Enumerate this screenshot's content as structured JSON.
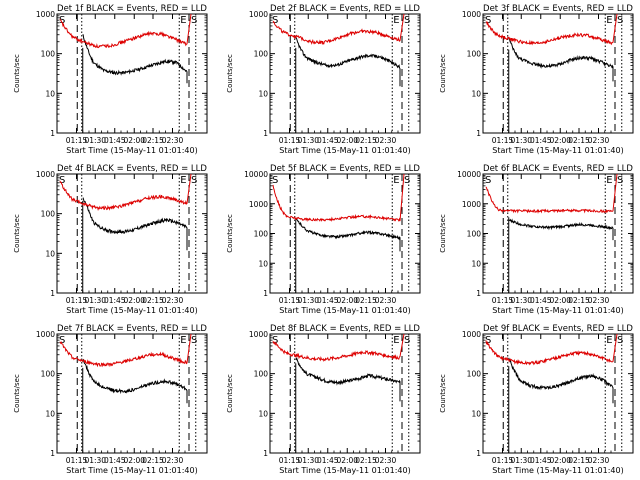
{
  "colors": {
    "events": "#000000",
    "lld": "#dd0000",
    "axes": "#000000",
    "background": "#ffffff"
  },
  "chart_data": [
    {
      "id": "1f",
      "type": "line",
      "title": "Det 1f BLACK = Events, RED = LLD",
      "xlabel": "Start Time (15-May-11 01:01:40)",
      "ylabel": "Counts/sec",
      "yscale": "log",
      "ylim": [
        1,
        1000
      ],
      "y_ticks": [
        "1",
        "10",
        "100",
        "1000"
      ],
      "x_ticks": [
        "01:15",
        "01:30",
        "01:45",
        "02:00",
        "02:15",
        "02:30"
      ],
      "markers": [
        {
          "label": "S",
          "style": "solid"
        },
        {
          "label": "E",
          "style": "dotted"
        },
        {
          "label": "S",
          "style": "dashed"
        }
      ],
      "series": [
        {
          "name": "BLACK = Events",
          "start": 300,
          "s": [
            100,
            60,
            38,
            33,
            33,
            38,
            45,
            55,
            65,
            60,
            35
          ],
          "drop": 18
        },
        {
          "name": "RED = LLD",
          "start": 700,
          "s": [
            360,
            260,
            190,
            150,
            160,
            200,
            260,
            320,
            320,
            240,
            170
          ]
        }
      ]
    },
    {
      "id": "2f",
      "type": "line",
      "title": "Det 2f BLACK = Events, RED = LLD",
      "xlabel": "Start Time (15-May-11 01:01:40)",
      "ylabel": "Counts/sec",
      "yscale": "log",
      "ylim": [
        1,
        1000
      ],
      "y_ticks": [
        "1",
        "10",
        "100",
        "1000"
      ],
      "x_ticks": [
        "01:15",
        "01:30",
        "01:45",
        "02:00",
        "02:15",
        "02:30"
      ],
      "markers": [
        {
          "label": "S",
          "style": "solid"
        },
        {
          "label": "E",
          "style": "dotted"
        },
        {
          "label": "S",
          "style": "dashed"
        }
      ],
      "series": [
        {
          "name": "BLACK = Events",
          "start": 250,
          "s": [
            100,
            80,
            60,
            50,
            52,
            65,
            80,
            90,
            85,
            65,
            45
          ],
          "drop": 15
        },
        {
          "name": "RED = LLD",
          "start": 650,
          "s": [
            380,
            320,
            260,
            200,
            190,
            240,
            320,
            370,
            350,
            280,
            220
          ]
        }
      ]
    },
    {
      "id": "3f",
      "type": "line",
      "title": "Det 3f BLACK = Events, RED = LLD",
      "xlabel": "Start Time (15-May-11 01:01:40)",
      "ylabel": "Counts/sec",
      "yscale": "log",
      "ylim": [
        1,
        1000
      ],
      "y_ticks": [
        "1",
        "10",
        "100",
        "1000"
      ],
      "x_ticks": [
        "01:15",
        "01:30",
        "01:45",
        "02:00",
        "02:15",
        "02:30"
      ],
      "markers": [
        {
          "label": "S",
          "style": "solid"
        },
        {
          "label": "E",
          "style": "dotted"
        },
        {
          "label": "S",
          "style": "dashed"
        }
      ],
      "series": [
        {
          "name": "BLACK = Events",
          "start": 250,
          "s": [
            90,
            75,
            60,
            50,
            48,
            55,
            70,
            80,
            75,
            60,
            45
          ],
          "drop": 20
        },
        {
          "name": "RED = LLD",
          "start": 650,
          "s": [
            320,
            280,
            230,
            190,
            180,
            210,
            260,
            300,
            290,
            230,
            180
          ]
        }
      ]
    },
    {
      "id": "4f",
      "type": "line",
      "title": "Det 4f BLACK = Events, RED = LLD",
      "xlabel": "Start Time (15-May-11 01:01:40)",
      "ylabel": "Counts/sec",
      "yscale": "log",
      "ylim": [
        1,
        1000
      ],
      "y_ticks": [
        "1",
        "10",
        "100",
        "1000"
      ],
      "x_ticks": [
        "01:15",
        "01:30",
        "01:45",
        "02:00",
        "02:15",
        "02:30"
      ],
      "markers": [
        {
          "label": "S",
          "style": "solid"
        },
        {
          "label": "E",
          "style": "dotted"
        },
        {
          "label": "S",
          "style": "dashed"
        }
      ],
      "series": [
        {
          "name": "BLACK = Events",
          "start": 250,
          "s": [
            150,
            60,
            40,
            35,
            35,
            40,
            50,
            60,
            70,
            60,
            45
          ],
          "drop": 12
        },
        {
          "name": "RED = LLD",
          "start": 650,
          "s": [
            300,
            220,
            170,
            140,
            140,
            160,
            200,
            250,
            270,
            230,
            180
          ]
        }
      ]
    },
    {
      "id": "5f",
      "type": "line",
      "title": "Det 5f BLACK = Events, RED = LLD",
      "xlabel": "Start Time (15-May-11 01:01:40)",
      "ylabel": "Counts/sec",
      "yscale": "log",
      "ylim": [
        1,
        10000
      ],
      "y_ticks": [
        "1",
        "10",
        "100",
        "1000",
        "10000"
      ],
      "x_ticks": [
        "01:15",
        "01:30",
        "01:45",
        "02:00",
        "02:15",
        "02:30"
      ],
      "markers": [
        {
          "label": "S",
          "style": "solid"
        },
        {
          "label": "E",
          "style": "dotted"
        },
        {
          "label": "S",
          "style": "dashed"
        }
      ],
      "series": [
        {
          "name": "BLACK = Events",
          "start": 300,
          "s": [
            200,
            130,
            95,
            80,
            78,
            85,
            100,
            110,
            100,
            85,
            70
          ],
          "drop": 25
        },
        {
          "name": "RED = LLD",
          "start": 4000,
          "s": [
            450,
            380,
            320,
            290,
            290,
            310,
            350,
            380,
            360,
            320,
            280
          ]
        }
      ]
    },
    {
      "id": "6f",
      "type": "line",
      "title": "Det 6f BLACK = Events, RED = LLD",
      "xlabel": "Start Time (15-May-11 01:01:40)",
      "ylabel": "Counts/sec",
      "yscale": "log",
      "ylim": [
        1,
        10000
      ],
      "y_ticks": [
        "1",
        "10",
        "100",
        "1000",
        "10000"
      ],
      "x_ticks": [
        "01:15",
        "01:30",
        "01:45",
        "02:00",
        "02:15",
        "02:30"
      ],
      "markers": [
        {
          "label": "S",
          "style": "solid"
        },
        {
          "label": "E",
          "style": "dotted"
        },
        {
          "label": "S",
          "style": "dashed"
        }
      ],
      "series": [
        {
          "name": "BLACK = Events",
          "start": 280,
          "s": [
            250,
            210,
            180,
            165,
            160,
            170,
            190,
            200,
            190,
            170,
            150
          ],
          "drop": 60
        },
        {
          "name": "RED = LLD",
          "start": 4000,
          "s": [
            650,
            600,
            580,
            570,
            570,
            580,
            590,
            600,
            590,
            570,
            550
          ]
        }
      ]
    },
    {
      "id": "7f",
      "type": "line",
      "title": "Det 7f BLACK = Events, RED = LLD",
      "xlabel": "Start Time (15-May-11 01:01:40)",
      "ylabel": "Counts/sec",
      "yscale": "log",
      "ylim": [
        1,
        1000
      ],
      "y_ticks": [
        "1",
        "10",
        "100",
        "1000"
      ],
      "x_ticks": [
        "01:15",
        "01:30",
        "01:45",
        "02:00",
        "02:15",
        "02:30"
      ],
      "markers": [
        {
          "label": "S",
          "style": "solid"
        },
        {
          "label": "E",
          "style": "dotted"
        },
        {
          "label": "S",
          "style": "dashed"
        }
      ],
      "series": [
        {
          "name": "BLACK = Events",
          "start": 250,
          "s": [
            100,
            65,
            45,
            38,
            36,
            40,
            50,
            60,
            65,
            55,
            40
          ],
          "drop": 18
        },
        {
          "name": "RED = LLD",
          "start": 650,
          "s": [
            330,
            250,
            200,
            170,
            170,
            200,
            240,
            300,
            310,
            240,
            190
          ]
        }
      ]
    },
    {
      "id": "8f",
      "type": "line",
      "title": "Det 8f BLACK = Events, RED = LLD",
      "xlabel": "Start Time (15-May-11 01:01:40)",
      "ylabel": "Counts/sec",
      "yscale": "log",
      "ylim": [
        1,
        1000
      ],
      "y_ticks": [
        "1",
        "10",
        "100",
        "1000"
      ],
      "x_ticks": [
        "01:15",
        "01:30",
        "01:45",
        "02:00",
        "02:15",
        "02:30"
      ],
      "markers": [
        {
          "label": "S",
          "style": "solid"
        },
        {
          "label": "E",
          "style": "dotted"
        },
        {
          "label": "S",
          "style": "dashed"
        }
      ],
      "series": [
        {
          "name": "BLACK = Events",
          "start": 250,
          "s": [
            130,
            100,
            80,
            65,
            60,
            65,
            75,
            90,
            80,
            70,
            60
          ],
          "drop": 20
        },
        {
          "name": "RED = LLD",
          "start": 650,
          "s": [
            450,
            330,
            280,
            240,
            230,
            250,
            290,
            350,
            330,
            280,
            250
          ]
        }
      ]
    },
    {
      "id": "9f",
      "type": "line",
      "title": "Det 9f BLACK = Events, RED = LLD",
      "xlabel": "Start Time (15-May-11 01:01:40)",
      "ylabel": "Counts/sec",
      "yscale": "log",
      "ylim": [
        1,
        1000
      ],
      "y_ticks": [
        "1",
        "10",
        "100",
        "1000"
      ],
      "x_ticks": [
        "01:15",
        "01:30",
        "01:45",
        "02:00",
        "02:15",
        "02:30"
      ],
      "markers": [
        {
          "label": "S",
          "style": "solid"
        },
        {
          "label": "E",
          "style": "dotted"
        },
        {
          "label": "S",
          "style": "dashed"
        }
      ],
      "series": [
        {
          "name": "BLACK = Events",
          "start": 250,
          "s": [
            110,
            70,
            50,
            45,
            45,
            52,
            65,
            80,
            90,
            70,
            45
          ],
          "drop": 18
        },
        {
          "name": "RED = LLD",
          "start": 650,
          "s": [
            340,
            260,
            210,
            185,
            190,
            230,
            280,
            330,
            330,
            260,
            200
          ]
        }
      ]
    }
  ]
}
